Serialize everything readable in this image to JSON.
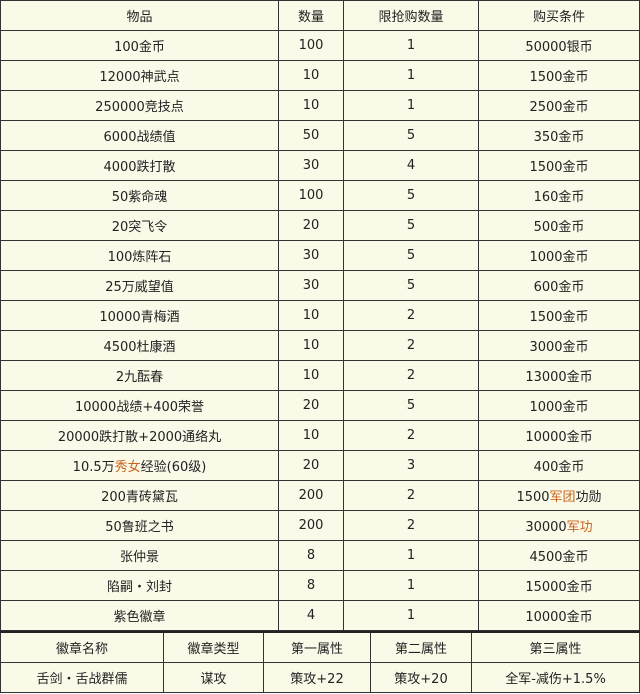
{
  "shop_table": {
    "headers": [
      "物品",
      "数量",
      "限抢购数量",
      "购买条件"
    ],
    "rows": [
      {
        "item": [
          {
            "t": "100金币"
          }
        ],
        "qty": "100",
        "limit": "1",
        "cost": [
          {
            "t": "50000银币"
          }
        ]
      },
      {
        "item": [
          {
            "t": "12000神武点"
          }
        ],
        "qty": "10",
        "limit": "1",
        "cost": [
          {
            "t": "1500金币"
          }
        ]
      },
      {
        "item": [
          {
            "t": "250000竞技点"
          }
        ],
        "qty": "10",
        "limit": "1",
        "cost": [
          {
            "t": "2500金币"
          }
        ]
      },
      {
        "item": [
          {
            "t": "6000战绩值"
          }
        ],
        "qty": "50",
        "limit": "5",
        "cost": [
          {
            "t": "350金币"
          }
        ]
      },
      {
        "item": [
          {
            "t": "4000跌打散"
          }
        ],
        "qty": "30",
        "limit": "4",
        "cost": [
          {
            "t": "1500金币"
          }
        ]
      },
      {
        "item": [
          {
            "t": "50紫命魂"
          }
        ],
        "qty": "100",
        "limit": "5",
        "cost": [
          {
            "t": "160金币"
          }
        ]
      },
      {
        "item": [
          {
            "t": "20突飞令"
          }
        ],
        "qty": "20",
        "limit": "5",
        "cost": [
          {
            "t": "500金币"
          }
        ]
      },
      {
        "item": [
          {
            "t": "100炼阵石"
          }
        ],
        "qty": "30",
        "limit": "5",
        "cost": [
          {
            "t": "1000金币"
          }
        ]
      },
      {
        "item": [
          {
            "t": "25万威望值"
          }
        ],
        "qty": "30",
        "limit": "5",
        "cost": [
          {
            "t": "600金币"
          }
        ]
      },
      {
        "item": [
          {
            "t": "10000青梅酒"
          }
        ],
        "qty": "10",
        "limit": "2",
        "cost": [
          {
            "t": "1500金币"
          }
        ]
      },
      {
        "item": [
          {
            "t": "4500杜康酒"
          }
        ],
        "qty": "10",
        "limit": "2",
        "cost": [
          {
            "t": "3000金币"
          }
        ]
      },
      {
        "item": [
          {
            "t": "2九酝春"
          }
        ],
        "qty": "10",
        "limit": "2",
        "cost": [
          {
            "t": "13000金币"
          }
        ]
      },
      {
        "item": [
          {
            "t": "10000战绩+400荣誉"
          }
        ],
        "qty": "20",
        "limit": "5",
        "cost": [
          {
            "t": "1000金币"
          }
        ]
      },
      {
        "item": [
          {
            "t": "20000跌打散+2000通络丸"
          }
        ],
        "qty": "10",
        "limit": "2",
        "cost": [
          {
            "t": "10000金币"
          }
        ]
      },
      {
        "item": [
          {
            "t": "10.5万"
          },
          {
            "t": "秀女",
            "hl": true
          },
          {
            "t": "经验(60级)"
          }
        ],
        "qty": "20",
        "limit": "3",
        "cost": [
          {
            "t": "400金币"
          }
        ]
      },
      {
        "item": [
          {
            "t": "200青砖黛瓦"
          }
        ],
        "qty": "200",
        "limit": "2",
        "cost": [
          {
            "t": "1500"
          },
          {
            "t": "军团",
            "hl": true
          },
          {
            "t": "功勋"
          }
        ]
      },
      {
        "item": [
          {
            "t": "50鲁班之书"
          }
        ],
        "qty": "200",
        "limit": "2",
        "cost": [
          {
            "t": "30000"
          },
          {
            "t": "军功",
            "hl": true
          }
        ]
      },
      {
        "item": [
          {
            "t": "张仲景"
          }
        ],
        "qty": "8",
        "limit": "1",
        "cost": [
          {
            "t": "4500金币"
          }
        ]
      },
      {
        "item": [
          {
            "t": "陷嗣・刘封"
          }
        ],
        "qty": "8",
        "limit": "1",
        "cost": [
          {
            "t": "15000金币"
          }
        ]
      },
      {
        "item": [
          {
            "t": "紫色徽章"
          }
        ],
        "qty": "4",
        "limit": "1",
        "cost": [
          {
            "t": "10000金币"
          }
        ]
      }
    ]
  },
  "badge_table": {
    "headers": [
      "徽章名称",
      "徽章类型",
      "第一属性",
      "第二属性",
      "第三属性"
    ],
    "rows": [
      [
        "舌剑・舌战群儒",
        "谋攻",
        "策攻+22",
        "策攻+20",
        "全军-减伤+1.5%"
      ]
    ]
  },
  "colors": {
    "highlight": "#c8641c",
    "background": "#fbf9e8"
  }
}
